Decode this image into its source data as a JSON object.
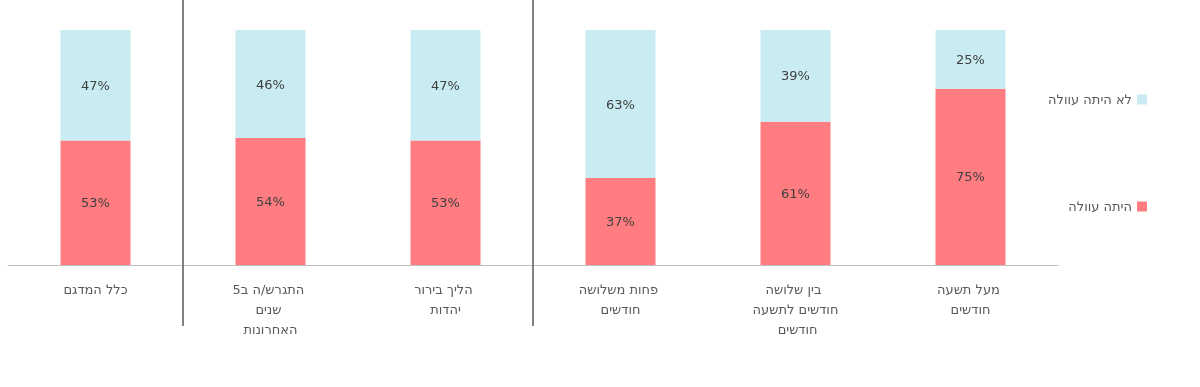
{
  "chart_data": {
    "type": "bar",
    "stacked": true,
    "categories": [
      "כלל המדגם",
      "התגרש/ה ב5 שנים האחרונות",
      "הליך בירור יהדות",
      "פחות משלושה חודשים",
      "בין שלושה חודשים לתשעה חודשים",
      "מעל תשעה חודשים"
    ],
    "series": [
      {
        "name": "היתה עוולה",
        "color": "#ff7c80",
        "values": [
          53,
          54,
          53,
          37,
          61,
          75
        ],
        "value_labels": [
          "53%",
          "54%",
          "53%",
          "37%",
          "61%",
          "75%"
        ]
      },
      {
        "name": "לא היתה עוולה",
        "color": "#c9ebf2",
        "values": [
          47,
          46,
          47,
          63,
          39,
          25
        ],
        "value_labels": [
          "47%",
          "46%",
          "47%",
          "63%",
          "39%",
          "25%"
        ]
      }
    ],
    "legend": "right",
    "grid": false,
    "tick_labels": "x"
  }
}
